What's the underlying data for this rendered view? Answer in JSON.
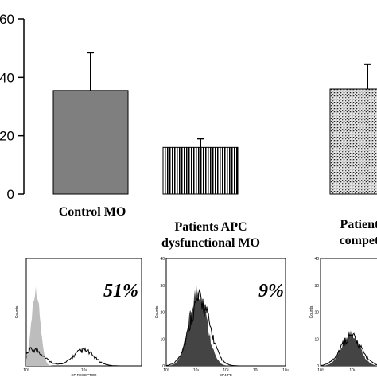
{
  "chart_data": [
    {
      "type": "bar",
      "categories": [
        "Control MO",
        "Patients APC dysfunctional MO",
        "Patients APC competent MO"
      ],
      "category_labels_visible": [
        [
          "Control MO"
        ],
        [
          "Patients APC",
          "dysfunctional MO"
        ],
        [
          "Patients",
          "compete"
        ]
      ],
      "values": [
        35.5,
        16,
        36
      ],
      "error_plus": [
        13,
        3,
        8.5
      ],
      "fills": [
        "solid-gray",
        "vertical-stripes",
        "stipple"
      ],
      "ylim": [
        0,
        60
      ],
      "ytick_labels": [
        "0",
        "20",
        "40",
        "60"
      ],
      "ytick_values": [
        0,
        20,
        40,
        60
      ],
      "colors": {
        "control": "#7f7f7f",
        "stroke": "#000000"
      }
    },
    {
      "type": "area",
      "panels": [
        {
          "percent_label": "51%",
          "xaxis_label": "EP RECEPTOR",
          "yaxis_label": "Counts",
          "yticks": [],
          "xticks": [
            "10⁰",
            "10¹"
          ]
        },
        {
          "percent_label": "9%",
          "xaxis_label": "EP4 PE",
          "yaxis_label": "Counts",
          "yticks": [
            "0",
            "10",
            "20",
            "30",
            "40"
          ],
          "xticks": [
            "10⁰",
            "10¹",
            "10²",
            "10³",
            "10⁴"
          ]
        },
        {
          "percent_label": "",
          "xaxis_label": "",
          "yaxis_label": "Counts",
          "yticks": [
            "0",
            "10",
            "20",
            "30",
            "40"
          ],
          "xticks": [
            "10⁰",
            "10¹"
          ]
        }
      ]
    }
  ]
}
